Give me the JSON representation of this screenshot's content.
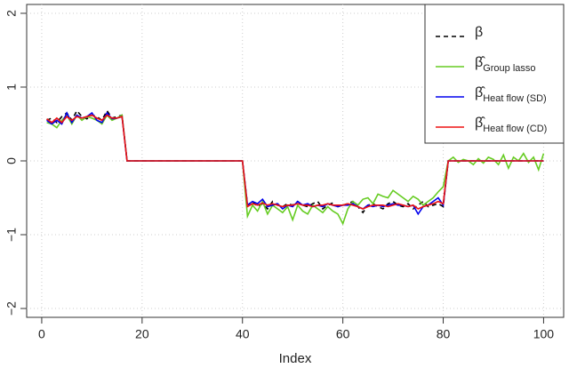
{
  "chart_data": {
    "type": "line",
    "xlabel": "Index",
    "x": [
      1,
      2,
      3,
      4,
      5,
      6,
      7,
      8,
      9,
      10,
      11,
      12,
      13,
      14,
      15,
      16,
      17,
      18,
      19,
      20,
      21,
      22,
      23,
      24,
      25,
      26,
      27,
      28,
      29,
      30,
      31,
      32,
      33,
      34,
      35,
      36,
      37,
      38,
      39,
      40,
      41,
      42,
      43,
      44,
      45,
      46,
      47,
      48,
      49,
      50,
      51,
      52,
      53,
      54,
      55,
      56,
      57,
      58,
      59,
      60,
      61,
      62,
      63,
      64,
      65,
      66,
      67,
      68,
      69,
      70,
      71,
      72,
      73,
      74,
      75,
      76,
      77,
      78,
      79,
      80,
      81,
      82,
      83,
      84,
      85,
      86,
      87,
      88,
      89,
      90,
      91,
      92,
      93,
      94,
      95,
      96,
      97,
      98,
      99,
      100
    ],
    "xlim": [
      -3,
      104
    ],
    "xticks": [
      0,
      20,
      40,
      60,
      80,
      100
    ],
    "ylim": [
      -2.12,
      2.12
    ],
    "yticks": [
      {
        "value": -2,
        "label": "−2"
      },
      {
        "value": -1,
        "label": "−1"
      },
      0,
      1,
      2
    ],
    "grid": true,
    "legend": "top-right",
    "series": [
      {
        "name": "β",
        "color": "#000000",
        "dashed": true,
        "values": [
          0.55,
          0.58,
          0.52,
          0.6,
          0.65,
          0.55,
          0.68,
          0.6,
          0.57,
          0.62,
          0.6,
          0.55,
          0.68,
          0.58,
          0.6,
          0.62,
          0,
          0,
          0,
          0,
          0,
          0,
          0,
          0,
          0,
          0,
          0,
          0,
          0,
          0,
          0,
          0,
          0,
          0,
          0,
          0,
          0,
          0,
          0,
          0,
          -0.6,
          -0.55,
          -0.62,
          -0.58,
          -0.65,
          -0.55,
          -0.6,
          -0.62,
          -0.58,
          -0.6,
          -0.55,
          -0.6,
          -0.62,
          -0.58,
          -0.55,
          -0.65,
          -0.6,
          -0.57,
          -0.62,
          -0.6,
          -0.58,
          -0.55,
          -0.62,
          -0.7,
          -0.6,
          -0.58,
          -0.62,
          -0.65,
          -0.58,
          -0.55,
          -0.6,
          -0.62,
          -0.58,
          -0.65,
          -0.6,
          -0.55,
          -0.62,
          -0.6,
          -0.58,
          -0.62,
          0,
          0,
          0,
          0,
          0,
          0,
          0,
          0,
          0,
          0,
          0,
          0,
          0,
          0,
          0,
          0,
          0,
          0,
          0,
          0
        ]
      },
      {
        "symbol": "β̂",
        "name": "Group lasso",
        "color": "#66cc22",
        "values": [
          0.52,
          0.5,
          0.45,
          0.55,
          0.62,
          0.5,
          0.62,
          0.55,
          0.6,
          0.58,
          0.55,
          0.5,
          0.62,
          0.55,
          0.58,
          0.62,
          0,
          0,
          0,
          0,
          0,
          0,
          0,
          0,
          0,
          0,
          0,
          0,
          0,
          0,
          0,
          0,
          0,
          0,
          0,
          0,
          0,
          0,
          0,
          0,
          -0.75,
          -0.6,
          -0.68,
          -0.55,
          -0.72,
          -0.6,
          -0.65,
          -0.7,
          -0.62,
          -0.8,
          -0.6,
          -0.68,
          -0.72,
          -0.6,
          -0.65,
          -0.7,
          -0.62,
          -0.68,
          -0.72,
          -0.85,
          -0.65,
          -0.55,
          -0.6,
          -0.52,
          -0.5,
          -0.58,
          -0.45,
          -0.48,
          -0.5,
          -0.4,
          -0.45,
          -0.5,
          -0.55,
          -0.48,
          -0.52,
          -0.6,
          -0.55,
          -0.5,
          -0.42,
          -0.35,
          0,
          0.05,
          -0.02,
          0.02,
          0,
          -0.05,
          0.03,
          -0.03,
          0.05,
          0.02,
          -0.05,
          0.08,
          -0.1,
          0.05,
          0,
          0.1,
          -0.02,
          0.05,
          -0.12,
          0.1
        ]
      },
      {
        "symbol": "β̂",
        "name": "Heat flow (SD)",
        "color": "#0000ee",
        "values": [
          0.55,
          0.5,
          0.55,
          0.5,
          0.65,
          0.52,
          0.62,
          0.58,
          0.6,
          0.65,
          0.55,
          0.52,
          0.65,
          0.57,
          0.58,
          0.6,
          0,
          0,
          0,
          0,
          0,
          0,
          0,
          0,
          0,
          0,
          0,
          0,
          0,
          0,
          0,
          0,
          0,
          0,
          0,
          0,
          0,
          0,
          0,
          0,
          -0.6,
          -0.55,
          -0.58,
          -0.52,
          -0.62,
          -0.6,
          -0.58,
          -0.65,
          -0.6,
          -0.62,
          -0.55,
          -0.6,
          -0.58,
          -0.62,
          -0.6,
          -0.62,
          -0.58,
          -0.6,
          -0.62,
          -0.6,
          -0.6,
          -0.58,
          -0.62,
          -0.65,
          -0.6,
          -0.62,
          -0.6,
          -0.62,
          -0.6,
          -0.58,
          -0.6,
          -0.6,
          -0.62,
          -0.6,
          -0.72,
          -0.62,
          -0.6,
          -0.55,
          -0.5,
          -0.6,
          0,
          0,
          0,
          0,
          0,
          0,
          0,
          0,
          0,
          0,
          0,
          0,
          0,
          0,
          0,
          0,
          0,
          0,
          0,
          0
        ]
      },
      {
        "symbol": "β̂",
        "name": "Heat flow (CD)",
        "color": "#ee1111",
        "values": [
          0.57,
          0.52,
          0.58,
          0.52,
          0.6,
          0.55,
          0.6,
          0.58,
          0.6,
          0.62,
          0.58,
          0.55,
          0.62,
          0.58,
          0.58,
          0.6,
          0,
          0,
          0,
          0,
          0,
          0,
          0,
          0,
          0,
          0,
          0,
          0,
          0,
          0,
          0,
          0,
          0,
          0,
          0,
          0,
          0,
          0,
          0,
          0,
          -0.62,
          -0.58,
          -0.6,
          -0.57,
          -0.6,
          -0.58,
          -0.6,
          -0.62,
          -0.6,
          -0.6,
          -0.58,
          -0.6,
          -0.6,
          -0.62,
          -0.6,
          -0.6,
          -0.58,
          -0.6,
          -0.6,
          -0.6,
          -0.58,
          -0.6,
          -0.62,
          -0.65,
          -0.62,
          -0.6,
          -0.6,
          -0.6,
          -0.62,
          -0.6,
          -0.58,
          -0.6,
          -0.62,
          -0.6,
          -0.65,
          -0.62,
          -0.6,
          -0.58,
          -0.55,
          -0.58,
          0,
          0,
          0,
          0,
          0,
          0,
          0,
          0,
          0,
          0,
          0,
          0,
          0,
          0,
          0,
          0,
          0,
          0,
          0,
          0
        ]
      }
    ]
  }
}
